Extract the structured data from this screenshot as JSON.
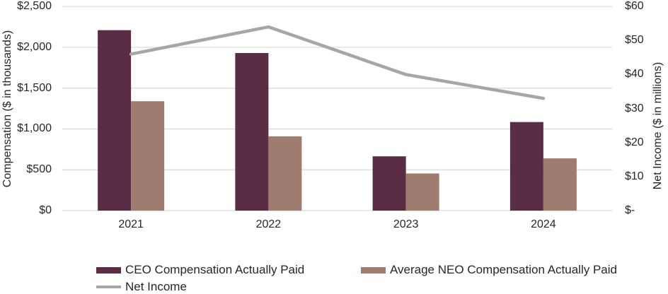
{
  "chart_data": {
    "type": "combo",
    "title": "",
    "categories": [
      "2021",
      "2022",
      "2023",
      "2024"
    ],
    "series": [
      {
        "name": "CEO Compensation Actually Paid",
        "type": "bar",
        "axis": "left",
        "color": "#5B2D44",
        "values": [
          2210,
          1930,
          665,
          1085
        ]
      },
      {
        "name": "Average NEO Compensation Actually Paid",
        "type": "bar",
        "axis": "left",
        "color": "#A07C70",
        "values": [
          1340,
          910,
          455,
          640
        ]
      },
      {
        "name": "Net Income",
        "type": "line",
        "axis": "right",
        "color": "#A6A6A6",
        "values": [
          46,
          54,
          40,
          33
        ]
      }
    ],
    "left_axis": {
      "title": "Compensation ($ in thousands)",
      "min": 0,
      "max": 2500,
      "step": 500,
      "tick_labels": [
        "$0",
        "$500",
        "$1,000",
        "$1,500",
        "$2,000",
        "$2,500"
      ]
    },
    "right_axis": {
      "title": "Net Income ($ in millions)",
      "min": 0,
      "max": 60,
      "step": 10,
      "tick_labels": [
        "$-",
        "$10",
        "$20",
        "$30",
        "$40",
        "$50",
        "$60"
      ]
    },
    "grid": true,
    "legend_position": "bottom",
    "gridline_color": "#D9D9D9",
    "text_color": "#262626",
    "background": "#FFFFFF"
  }
}
